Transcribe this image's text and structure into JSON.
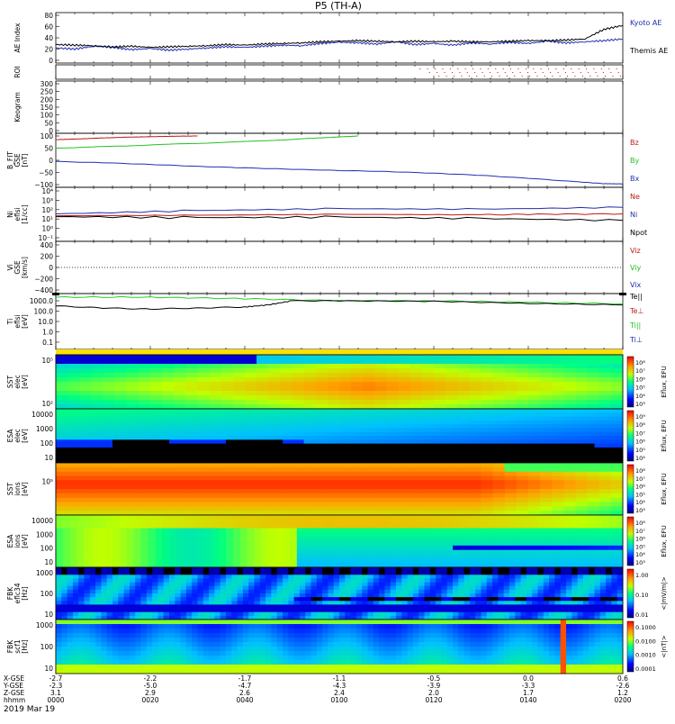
{
  "title": "P5 (TH-A)",
  "date_label": "2019 Mar 19",
  "colors": {
    "kyoto": "#1f2fb0",
    "themis": "#000000",
    "bx": "#1f2fb0",
    "by": "#22c022",
    "bz": "#c01818",
    "ni": "#1f2fb0",
    "ne": "#c01818",
    "npot": "#000000",
    "te_par": "#22d022",
    "ti": "#000000"
  },
  "chart_data": [
    {
      "type": "line",
      "id": "ae",
      "ylabel": "AE Index",
      "ylim": [
        0,
        80
      ],
      "ticks": [
        "80",
        "60",
        "40",
        "20",
        "0"
      ],
      "series": [
        {
          "name": "Kyoto AE",
          "color_key": "kyoto",
          "x": [
            0,
            4,
            8,
            12,
            16,
            20,
            24,
            28,
            32,
            36,
            40,
            44,
            48,
            52,
            56,
            60,
            64,
            68,
            72,
            76,
            80,
            84,
            88,
            92,
            96,
            100,
            104,
            108,
            112,
            116,
            120
          ],
          "values": [
            22,
            20,
            25,
            23,
            19,
            21,
            18,
            20,
            22,
            24,
            23,
            25,
            27,
            26,
            30,
            32,
            31,
            29,
            33,
            28,
            30,
            27,
            31,
            29,
            32,
            30,
            34,
            31,
            33,
            35,
            38
          ]
        },
        {
          "name": "Themis AE",
          "color_key": "themis",
          "x": [
            0,
            4,
            8,
            12,
            16,
            20,
            24,
            28,
            32,
            36,
            40,
            44,
            48,
            52,
            56,
            60,
            64,
            68,
            72,
            76,
            80,
            84,
            88,
            92,
            96,
            100,
            104,
            108,
            112,
            116,
            120
          ],
          "values": [
            28,
            27,
            26,
            24,
            25,
            23,
            24,
            25,
            26,
            28,
            27,
            29,
            30,
            31,
            33,
            34,
            35,
            34,
            33,
            34,
            33,
            34,
            33,
            33,
            34,
            35,
            35,
            36,
            38,
            55,
            62
          ]
        }
      ]
    },
    {
      "type": "scatter",
      "id": "roi",
      "ylabel": "ROI",
      "x_start": 77,
      "x_end": 120
    },
    {
      "type": "line",
      "id": "keogram",
      "ylabel": "Keogram",
      "ylim": [
        0,
        300
      ],
      "ticks": [
        "300",
        "250",
        "200",
        "150",
        "100",
        "50",
        "0"
      ]
    },
    {
      "type": "line",
      "id": "bfield",
      "ylabel": [
        "B_FIT",
        "GSE",
        "[nT]"
      ],
      "ylim": [
        -100,
        100
      ],
      "ticks": [
        "100",
        "50",
        "0",
        "−50",
        "−100"
      ],
      "series": [
        {
          "name": "Bz",
          "color_key": "bz",
          "x": [
            0,
            5,
            10,
            15,
            20,
            25,
            30
          ],
          "values": [
            85,
            88,
            92,
            95,
            97,
            99,
            100
          ]
        },
        {
          "name": "By",
          "color_key": "by",
          "x": [
            0,
            8,
            16,
            24,
            32,
            40,
            48,
            56,
            60,
            64
          ],
          "values": [
            50,
            55,
            60,
            66,
            71,
            77,
            84,
            92,
            96,
            100
          ]
        },
        {
          "name": "Bx",
          "color_key": "bx",
          "x": [
            0,
            10,
            20,
            30,
            40,
            50,
            60,
            70,
            80,
            90,
            100,
            110,
            116,
            120
          ],
          "values": [
            -5,
            -10,
            -17,
            -25,
            -31,
            -37,
            -42,
            -46,
            -53,
            -62,
            -74,
            -88,
            -96,
            -97
          ]
        }
      ]
    },
    {
      "type": "line",
      "id": "density",
      "ylabel": [
        "Ni",
        "eflsi",
        "[1/cc]"
      ],
      "log": true,
      "ticks": [
        "10⁴",
        "10³",
        "10²",
        "10¹",
        "10⁰",
        "10⁻¹"
      ],
      "series": [
        {
          "name": "Ne",
          "color_key": "ne"
        },
        {
          "name": "Ni",
          "color_key": "ni"
        },
        {
          "name": "Npot",
          "color_key": "npot"
        }
      ]
    },
    {
      "type": "line",
      "id": "velocity",
      "ylabel": [
        "Vi",
        "GSE",
        "[km/s]"
      ],
      "ylim": [
        -500,
        500
      ],
      "ticks": [
        "400",
        "200",
        "0",
        "−200",
        "−400"
      ],
      "series": [
        {
          "name": "Viz",
          "color_key": "bz"
        },
        {
          "name": "Viy",
          "color_key": "by"
        },
        {
          "name": "Vix",
          "color_key": "bx"
        }
      ]
    },
    {
      "type": "line",
      "id": "temperature",
      "ylabel": [
        "Ti",
        "eflsi",
        "[eV]"
      ],
      "log": true,
      "ticks": [
        "1000.0",
        "100.0",
        "10.0",
        "1.0",
        "0.1"
      ],
      "series": [
        {
          "name": "Te||",
          "color_key": "themis"
        },
        {
          "name": "Te⊥",
          "color_key": "bz"
        },
        {
          "name": "Ti||",
          "color_key": "by"
        },
        {
          "name": "Ti⊥",
          "color_key": "bx"
        }
      ]
    },
    {
      "type": "heatmap",
      "id": "sst_e",
      "ylabel": [
        "SST",
        "elec",
        "[eV]"
      ],
      "yticks": [
        "10⁵",
        "10²"
      ],
      "colorbar_ticks": [
        "10⁸",
        "10⁷",
        "10⁶",
        "10⁵",
        "10⁴",
        "10³"
      ],
      "colorbar_label": "Eflux, EFU"
    },
    {
      "type": "heatmap",
      "id": "esa_e",
      "ylabel": [
        "ESA",
        "elec",
        "[eV]"
      ],
      "yticks": [
        "10000",
        "1000",
        "100",
        "10"
      ],
      "colorbar_ticks": [
        "10⁹",
        "10⁸",
        "10⁷",
        "10⁶",
        "10⁵",
        "10⁴"
      ],
      "colorbar_label": "Eflux, EFU"
    },
    {
      "type": "heatmap",
      "id": "sst_i",
      "ylabel": [
        "SST",
        "ions",
        "[eV]"
      ],
      "yticks": [
        "10⁵"
      ],
      "colorbar_ticks": [
        "10⁸",
        "10⁷",
        "10⁶",
        "10⁵",
        "10⁴",
        "10³"
      ],
      "colorbar_label": "Eflux, EFU"
    },
    {
      "type": "heatmap",
      "id": "esa_i",
      "ylabel": [
        "ESA",
        "ions",
        "[eV]"
      ],
      "yticks": [
        "10000",
        "1000",
        "100",
        "10"
      ],
      "colorbar_ticks": [
        "10⁸",
        "10⁷",
        "10⁶",
        "10⁵",
        "10⁴",
        "10³"
      ],
      "colorbar_label": "Eflux, EFU"
    },
    {
      "type": "heatmap",
      "id": "fbk_e",
      "ylabel": [
        "FBK",
        "eflc34",
        "[Hz]"
      ],
      "yticks": [
        "1000",
        "100",
        "10"
      ],
      "colorbar_ticks": [
        "1.00",
        "0.10",
        "0.01"
      ],
      "colorbar_label": "<|mV/m|>"
    },
    {
      "type": "heatmap",
      "id": "fbk_b",
      "ylabel": [
        "FBK",
        "scf1",
        "[Hz]"
      ],
      "yticks": [
        "1000",
        "100",
        "10"
      ],
      "colorbar_ticks": [
        "0.1000",
        "0.0100",
        "0.0010",
        "0.0001"
      ],
      "colorbar_label": "<|nT|>"
    }
  ],
  "xaxis": {
    "row_labels": [
      "X-GSE",
      "Y-GSE",
      "Z-GSE",
      "hhmm"
    ],
    "columns": [
      {
        "values": [
          "-2.7",
          "-2.3",
          "3.1",
          "0000"
        ]
      },
      {
        "values": [
          "-2.2",
          "-5.0",
          "2.9",
          "0020"
        ]
      },
      {
        "values": [
          "-1.7",
          "-4.7",
          "2.6",
          "0040"
        ]
      },
      {
        "values": [
          "-1.1",
          "-4.3",
          "2.4",
          "0100"
        ]
      },
      {
        "values": [
          "-0.5",
          "-3.9",
          "2.0",
          "0120"
        ]
      },
      {
        "values": [
          "0.0",
          "-3.3",
          "1.7",
          "0140"
        ]
      },
      {
        "values": [
          "0.6",
          "-2.6",
          "1.2",
          "0200"
        ]
      }
    ]
  }
}
